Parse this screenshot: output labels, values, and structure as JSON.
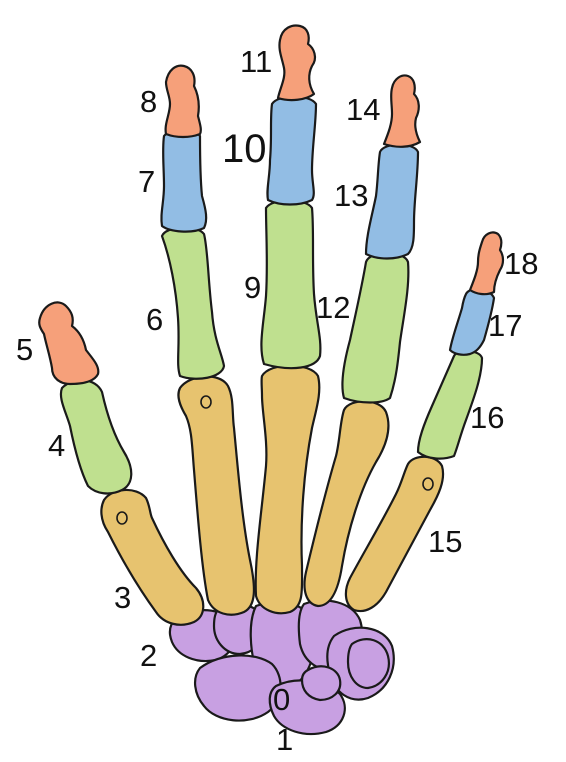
{
  "colors": {
    "carpal": "#c8a0e2",
    "metacarpal": "#e7c36f",
    "proximal": "#bfe08f",
    "middle": "#92bde4",
    "distal": "#f6a07a"
  },
  "labels": {
    "l0": "0",
    "l1": "1",
    "l2": "2",
    "l3": "3",
    "l4": "4",
    "l5": "5",
    "l6": "6",
    "l7": "7",
    "l8": "8",
    "l9": "9",
    "l10": "10",
    "l11": "11",
    "l12": "12",
    "l13": "13",
    "l14": "14",
    "l15": "15",
    "l16": "16",
    "l17": "17",
    "l18": "18"
  }
}
